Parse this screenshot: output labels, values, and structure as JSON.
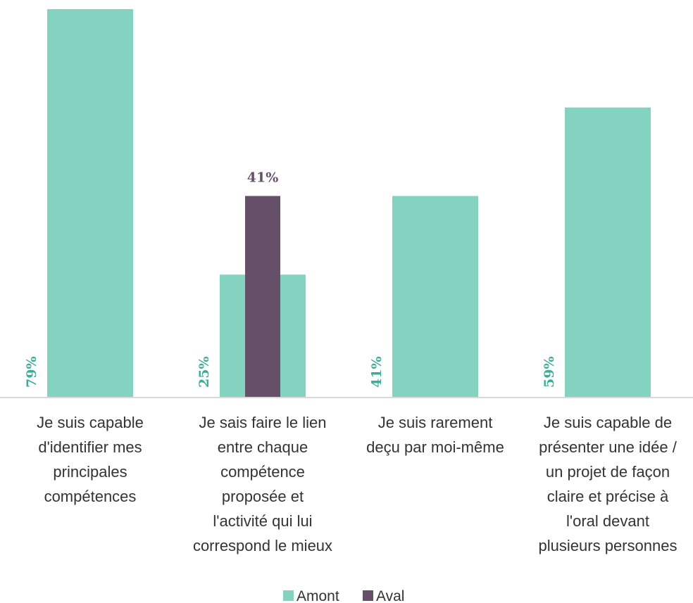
{
  "chart_data": {
    "type": "bar",
    "categories": [
      [
        "Je suis capable",
        "d'identifier mes",
        "principales",
        "compétences"
      ],
      [
        "Je sais faire le lien",
        "entre chaque",
        "compétence",
        "proposée et",
        "l'activité qui lui",
        "correspond le mieux"
      ],
      [
        "Je suis rarement",
        "deçu par moi-même"
      ],
      [
        "Je suis capable de",
        "présenter une idée /",
        "un projet de façon",
        "claire et précise à",
        "l'oral devant",
        "plusieurs personnes"
      ]
    ],
    "series": [
      {
        "name": "Amont",
        "color": "#84D2C0",
        "values": [
          79,
          25,
          41,
          59
        ],
        "labels": [
          "79%",
          "25%",
          "41%",
          "59%"
        ],
        "label_color": "#3BAE9B"
      },
      {
        "name": "Aval",
        "color": "#654F69",
        "values": [
          null,
          41,
          null,
          null
        ],
        "labels": [
          null,
          "41%",
          null,
          null
        ],
        "label_color": "#654F69"
      }
    ],
    "ylim": [
      0,
      79
    ],
    "grid": false,
    "legend_position": "bottom",
    "title": "",
    "xlabel": "",
    "ylabel": ""
  }
}
